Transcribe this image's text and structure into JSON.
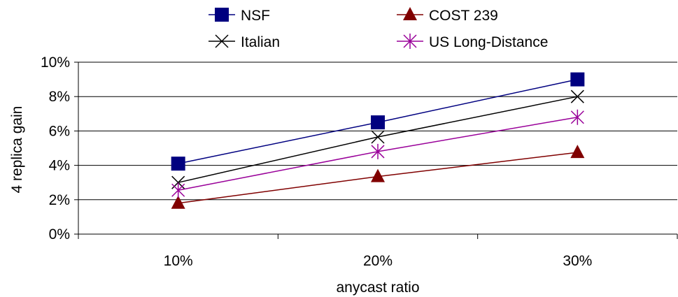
{
  "chart_data": {
    "type": "line",
    "categories": [
      "10%",
      "20%",
      "30%"
    ],
    "series": [
      {
        "name": "NSF",
        "values": [
          4.1,
          6.5,
          9.0
        ],
        "color": "#000080",
        "marker": "square"
      },
      {
        "name": "COST 239",
        "values": [
          1.8,
          3.35,
          4.75
        ],
        "color": "#800000",
        "marker": "triangle"
      },
      {
        "name": "Italian",
        "values": [
          3.0,
          5.65,
          8.0
        ],
        "color": "#000000",
        "marker": "x"
      },
      {
        "name": "US Long-Distance",
        "values": [
          2.55,
          4.8,
          6.8
        ],
        "color": "#990099",
        "marker": "star"
      }
    ],
    "xlabel": "anycast ratio",
    "ylabel": "4 replica gain",
    "ylim": [
      0,
      10
    ],
    "yticks": [
      "0%",
      "2%",
      "4%",
      "6%",
      "8%",
      "10%"
    ],
    "grid": true,
    "legend_position": "top"
  }
}
